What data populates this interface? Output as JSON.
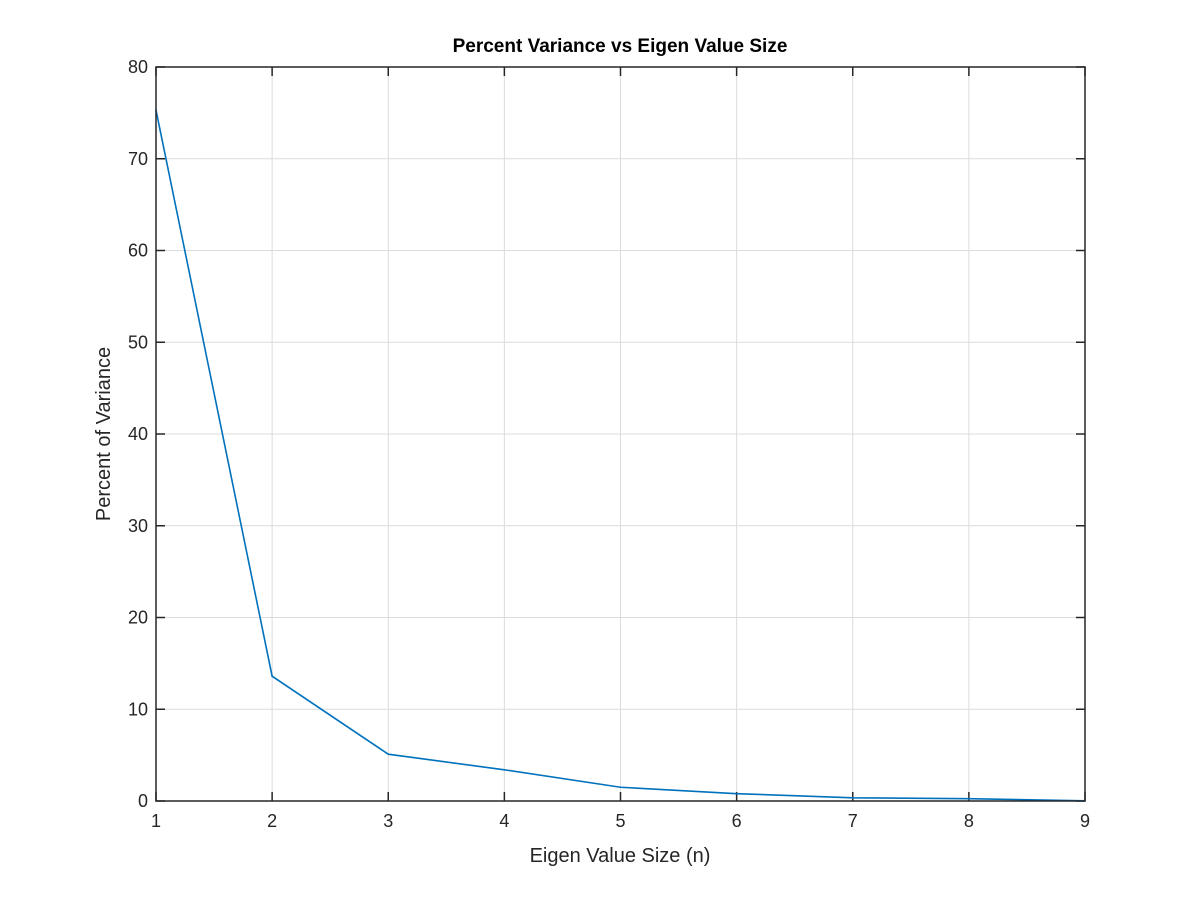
{
  "chart_data": {
    "type": "line",
    "title": "Percent Variance vs Eigen Value Size",
    "xlabel": "Eigen Value Size (n)",
    "ylabel": "Percent of Variance",
    "xlim": [
      1,
      9
    ],
    "ylim": [
      0,
      80
    ],
    "xticks": [
      1,
      2,
      3,
      4,
      5,
      6,
      7,
      8,
      9
    ],
    "yticks": [
      0,
      10,
      20,
      30,
      40,
      50,
      60,
      70,
      80
    ],
    "grid": true,
    "series": [
      {
        "x": [
          1,
          2,
          3,
          4,
          5,
          6,
          7,
          8,
          9
        ],
        "values": [
          75.3,
          13.6,
          5.1,
          3.4,
          1.5,
          0.8,
          0.35,
          0.25,
          0.02
        ],
        "color": "#0072BD"
      }
    ]
  }
}
